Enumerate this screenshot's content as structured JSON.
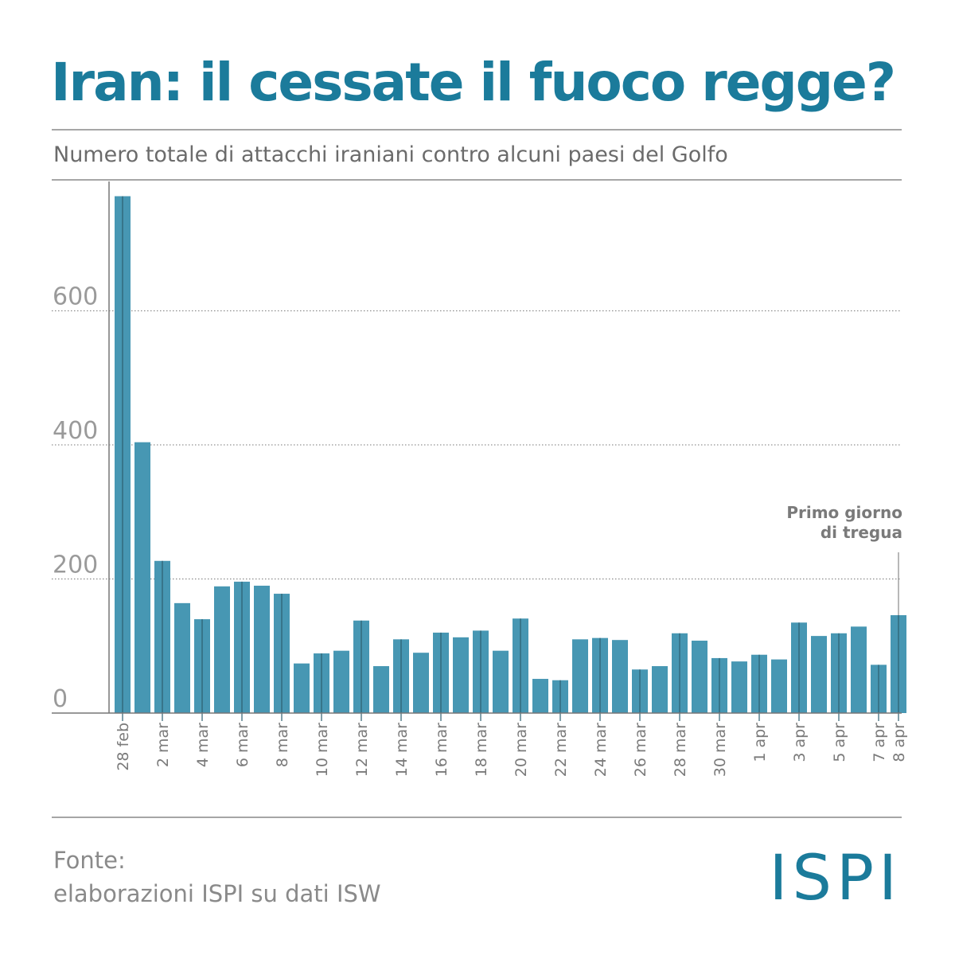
{
  "chart_data": {
    "type": "bar",
    "title": "Iran: il cessate il fuoco regge?",
    "subtitle": "Numero totale di attacchi iraniani contro alcuni paesi del Golfo",
    "categories": [
      "28 feb",
      null,
      "2 mar",
      null,
      "4 mar",
      null,
      "6 mar",
      null,
      "8 mar",
      null,
      "10 mar",
      null,
      "12 mar",
      null,
      "14 mar",
      null,
      "16 mar",
      null,
      "18 mar",
      null,
      "20 mar",
      null,
      "22 mar",
      null,
      "24 mar",
      null,
      "26 mar",
      null,
      "28 mar",
      null,
      "30 mar",
      null,
      "1 apr",
      null,
      "3 apr",
      null,
      "5 apr",
      null,
      "7 apr",
      "8 apr"
    ],
    "values": [
      771,
      404,
      227,
      164,
      140,
      189,
      196,
      190,
      178,
      74,
      89,
      93,
      138,
      70,
      110,
      90,
      120,
      113,
      123,
      93,
      141,
      51,
      49,
      110,
      112,
      109,
      65,
      70,
      119,
      108,
      82,
      77,
      87,
      80,
      135,
      115,
      119,
      129,
      72,
      146
    ],
    "color": "#4797b3",
    "ylim": [
      0,
      793
    ],
    "yticks": [
      0,
      200,
      400,
      600
    ],
    "grid": true,
    "annotation": {
      "lines": [
        "Primo giorno",
        "di tregua"
      ],
      "index": 39
    },
    "source": [
      "Fonte:",
      "elaborazioni ISPI su dati ISW"
    ],
    "logo": "ISPI"
  }
}
